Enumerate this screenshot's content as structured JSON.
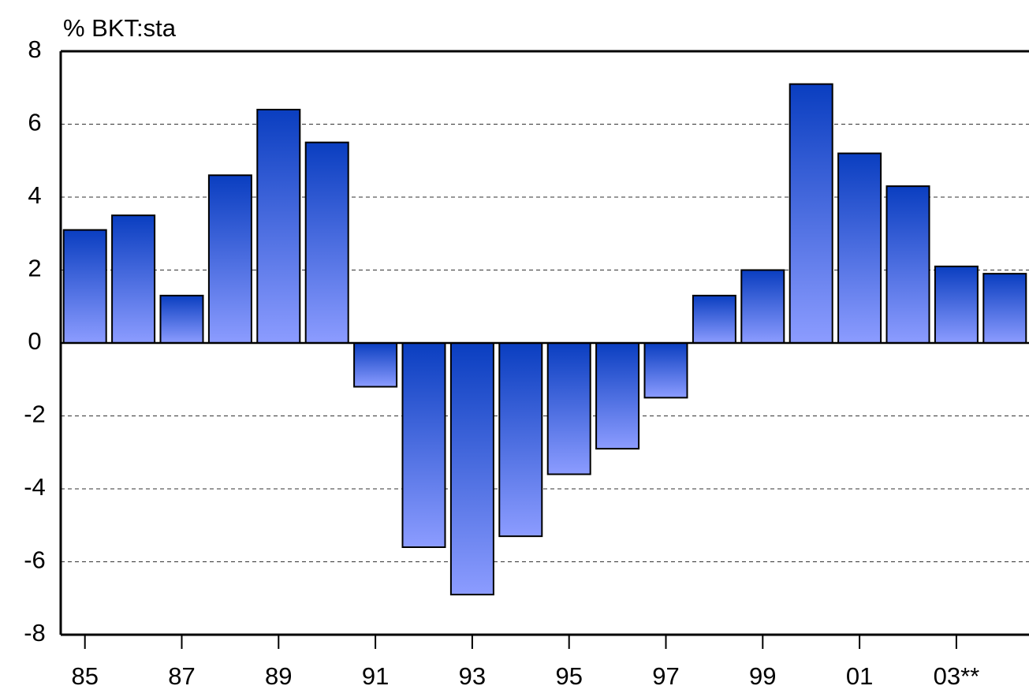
{
  "chart_data": {
    "type": "bar",
    "title": "% BKT:sta",
    "categories": [
      "85",
      null,
      "87",
      null,
      "89",
      null,
      "91",
      null,
      "93",
      null,
      "95",
      null,
      "97",
      null,
      "99",
      null,
      "01",
      null,
      "03**",
      null
    ],
    "values": [
      3.1,
      3.5,
      1.3,
      4.6,
      6.4,
      5.5,
      -1.2,
      -5.6,
      -6.9,
      -5.3,
      -3.6,
      -2.9,
      -1.5,
      1.3,
      2.0,
      7.1,
      5.2,
      4.3,
      2.1,
      1.9
    ],
    "color": "#0a3ec0",
    "ylim": [
      -8,
      8
    ],
    "yticks": [
      -8,
      -6,
      -4,
      -2,
      0,
      2,
      4,
      6,
      8
    ],
    "grid": true
  }
}
